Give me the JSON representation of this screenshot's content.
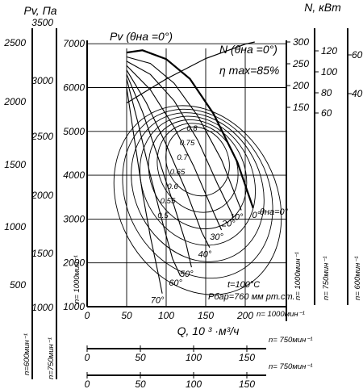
{
  "chart_data": {
    "type": "line",
    "title": "",
    "main_axes": {
      "x_label": "Q, 10 ³ ·м³/ч",
      "x_range": [
        0,
        250
      ],
      "x_ticks": [
        "0",
        "50",
        "100",
        "150",
        "200"
      ],
      "x_speed_label": "n= 1000мин⁻¹",
      "y_label": "Pv, Па",
      "y_range": [
        1000,
        7000
      ],
      "y_ticks": [
        "1000",
        "2000",
        "3000",
        "4000",
        "5000",
        "6000",
        "7000"
      ],
      "y_speed_label": "n= 1000мин⁻¹"
    },
    "left_pressure_scales": [
      {
        "speed_label": "n=600мин⁻¹",
        "ticks": [
          "500",
          "1000",
          "1500",
          "2000",
          "2500"
        ],
        "values": [
          500,
          1000,
          1500,
          2000,
          2500
        ]
      },
      {
        "speed_label": "n=750мин⁻¹",
        "ticks": [
          "1000",
          "1500",
          "2000",
          "2500",
          "3000",
          "3500"
        ],
        "values": [
          1000,
          1500,
          2000,
          2500,
          3000,
          3500
        ]
      }
    ],
    "extra_flow_scales": [
      {
        "speed_label": "n= 750мин⁻¹",
        "ticks": [
          "0",
          "50",
          "100",
          "150"
        ]
      },
      {
        "speed_label": "n= 750мин⁻¹",
        "ticks": [
          "0",
          "50",
          "100",
          "150"
        ]
      }
    ],
    "power_axis_label": "N, кВт",
    "power_scales": [
      {
        "speed_label": "n= 1000мин⁻¹",
        "ticks": [
          "150",
          "200",
          "250",
          "300"
        ],
        "values": [
          150,
          200,
          250,
          300
        ]
      },
      {
        "speed_label": "n= 750мин⁻¹",
        "ticks": [
          "60",
          "80",
          "100",
          "120"
        ],
        "values": [
          60,
          80,
          100,
          120
        ]
      },
      {
        "speed_label": "n= 600мин⁻¹",
        "ticks": [
          "40",
          "60"
        ],
        "values": [
          40,
          60
        ]
      }
    ],
    "pressure_curves": [
      {
        "angle": "0°",
        "points": [
          [
            50,
            6800
          ],
          [
            70,
            6850
          ],
          [
            100,
            6650
          ],
          [
            130,
            6200
          ],
          [
            160,
            5400
          ],
          [
            190,
            4300
          ],
          [
            210,
            3250
          ]
        ]
      },
      {
        "angle": "10°",
        "points": [
          [
            50,
            6700
          ],
          [
            80,
            6550
          ],
          [
            110,
            6100
          ],
          [
            140,
            5350
          ],
          [
            170,
            4350
          ],
          [
            195,
            3200
          ]
        ]
      },
      {
        "angle": "20°",
        "points": [
          [
            50,
            6600
          ],
          [
            80,
            6300
          ],
          [
            110,
            5700
          ],
          [
            140,
            4800
          ],
          [
            165,
            3800
          ],
          [
            185,
            3050
          ]
        ]
      },
      {
        "angle": "30°",
        "points": [
          [
            50,
            6500
          ],
          [
            80,
            5950
          ],
          [
            110,
            5100
          ],
          [
            135,
            4200
          ],
          [
            160,
            3150
          ],
          [
            170,
            2750
          ]
        ]
      },
      {
        "angle": "40°",
        "points": [
          [
            50,
            6400
          ],
          [
            75,
            5650
          ],
          [
            100,
            4700
          ],
          [
            125,
            3650
          ],
          [
            145,
            2700
          ],
          [
            155,
            2350
          ]
        ]
      },
      {
        "angle": "50°",
        "points": [
          [
            50,
            6300
          ],
          [
            70,
            5450
          ],
          [
            90,
            4400
          ],
          [
            110,
            3300
          ],
          [
            125,
            2450
          ],
          [
            132,
            1900
          ]
        ]
      },
      {
        "angle": "60°",
        "points": [
          [
            50,
            6200
          ],
          [
            65,
            5150
          ],
          [
            80,
            4000
          ],
          [
            95,
            2950
          ],
          [
            108,
            2100
          ],
          [
            118,
            1700
          ]
        ]
      },
      {
        "angle": "70°",
        "points": [
          [
            50,
            6000
          ],
          [
            60,
            4800
          ],
          [
            70,
            3600
          ],
          [
            80,
            2600
          ],
          [
            90,
            1750
          ],
          [
            95,
            1300
          ]
        ]
      }
    ],
    "efficiency_labels": [
      "0.8",
      "0.75",
      "0.7",
      "0.65",
      "0.6",
      "0.55",
      "0.5"
    ],
    "annotations": {
      "pv_curve": "Pv (θна =0°)",
      "n_curve": "N (θна =0°)",
      "eta_max": "η max=85%",
      "theta": "θна=0°",
      "temperature": "t=100°C",
      "barometric": "Pбар=760 мм рт.ст."
    }
  }
}
